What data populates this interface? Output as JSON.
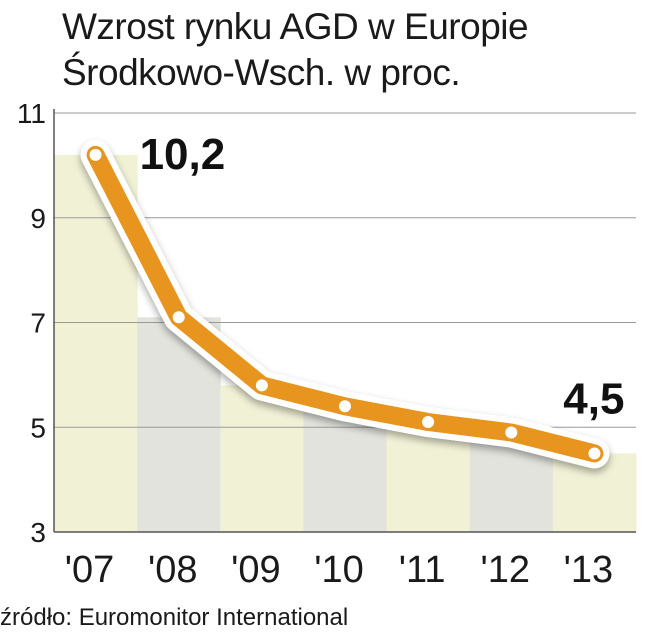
{
  "chart_data": {
    "type": "line",
    "title_line1": "Wzrost rynku AGD w Europie",
    "title_line2": "Środkowo-Wsch. w proc.",
    "categories": [
      "'07",
      "'08",
      "'09",
      "'10",
      "'11",
      "'12",
      "'13"
    ],
    "values": [
      10.2,
      7.1,
      5.8,
      5.4,
      5.1,
      4.9,
      4.5
    ],
    "ylim": [
      3,
      11
    ],
    "yticks": [
      "3",
      "5",
      "7",
      "9",
      "11"
    ],
    "annotations": [
      {
        "label": "10,2",
        "point": 0
      },
      {
        "label": "4,5",
        "point": 6
      }
    ],
    "grid": true,
    "colors": {
      "line": "#e8951f",
      "band_light": "#f1f1d6",
      "band_dark": "#e2e3dd",
      "grid": "#9a9a9a"
    }
  },
  "source": "źródło: Euromonitor International"
}
